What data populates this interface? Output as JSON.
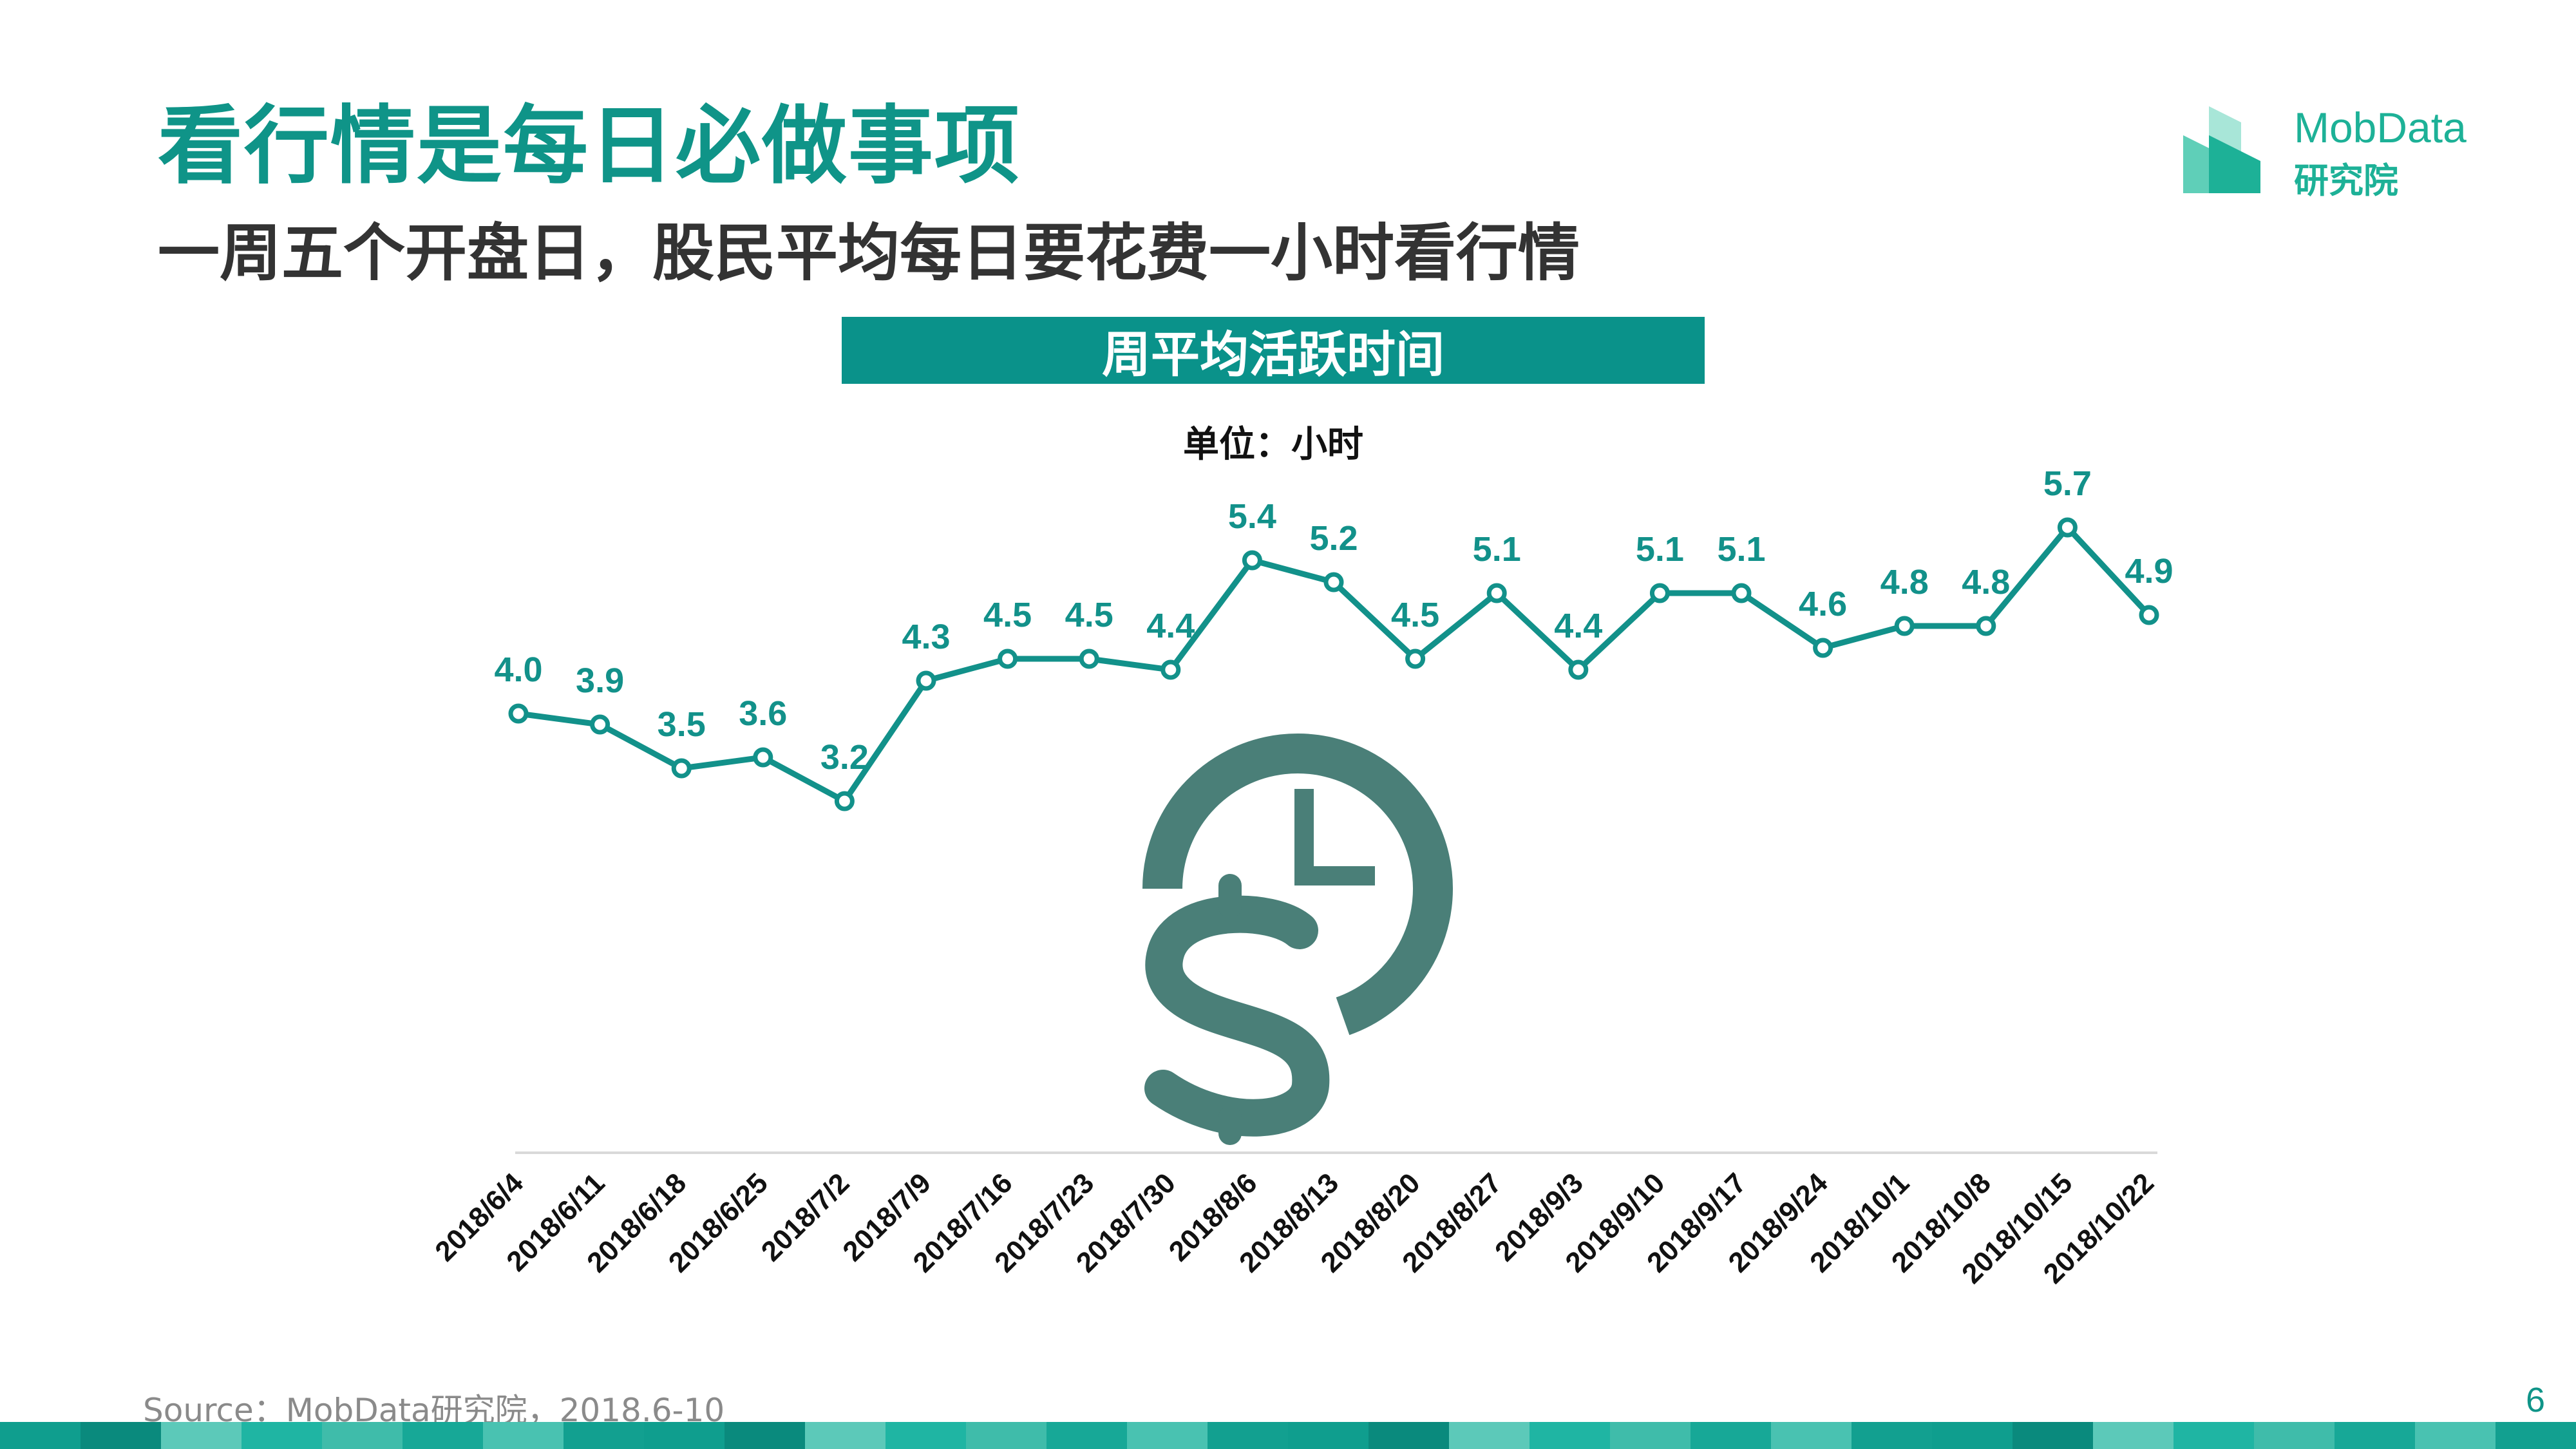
{
  "header": {
    "title": "看行情是每日必做事项",
    "subtitle": "一周五个开盘日，股民平均每日要花费一小时看行情"
  },
  "logo": {
    "name": "MobData",
    "sub": "研究院",
    "colors": [
      "#1db197",
      "#5fcfb8",
      "#a8e6d8"
    ]
  },
  "chart_data": {
    "type": "line",
    "title": "周平均活跃时间",
    "unit": "单位：小时",
    "categories": [
      "2018/6/4",
      "2018/6/11",
      "2018/6/18",
      "2018/6/25",
      "2018/7/2",
      "2018/7/9",
      "2018/7/16",
      "2018/7/23",
      "2018/7/30",
      "2018/8/6",
      "2018/8/13",
      "2018/8/20",
      "2018/8/27",
      "2018/9/3",
      "2018/9/10",
      "2018/9/17",
      "2018/9/24",
      "2018/10/1",
      "2018/10/8",
      "2018/10/15",
      "2018/10/22"
    ],
    "series": [
      {
        "values": [
          4.0,
          3.9,
          3.5,
          3.6,
          3.2,
          4.3,
          4.5,
          4.5,
          4.4,
          5.4,
          5.2,
          4.5,
          5.1,
          4.4,
          5.1,
          5.1,
          4.6,
          4.8,
          4.8,
          5.7,
          4.9
        ],
        "labels": [
          "4.0",
          "3.9",
          "3.5",
          "3.6",
          "3.2",
          "4.3",
          "4.5",
          "4.5",
          "4.4",
          "5.4",
          "5.2",
          "4.5",
          "5.1",
          "4.4",
          "5.1",
          "5.1",
          "4.6",
          "4.8",
          "4.8",
          "5.7",
          "4.9"
        ]
      }
    ],
    "legend": "none",
    "grid": false,
    "line_color": "#12918a",
    "icon": "clock-dollar-icon",
    "icon_color": "#4a7f78"
  },
  "footer": {
    "source": "Source：MobData研究院，2018.6-10",
    "page": "6",
    "bar_colors": [
      "#0f9e8e",
      "#1fb5a3",
      "#49c2b1",
      "#0a8a7d",
      "#3fbcaa",
      "#12a090",
      "#5cc9b9",
      "#17a897"
    ]
  }
}
